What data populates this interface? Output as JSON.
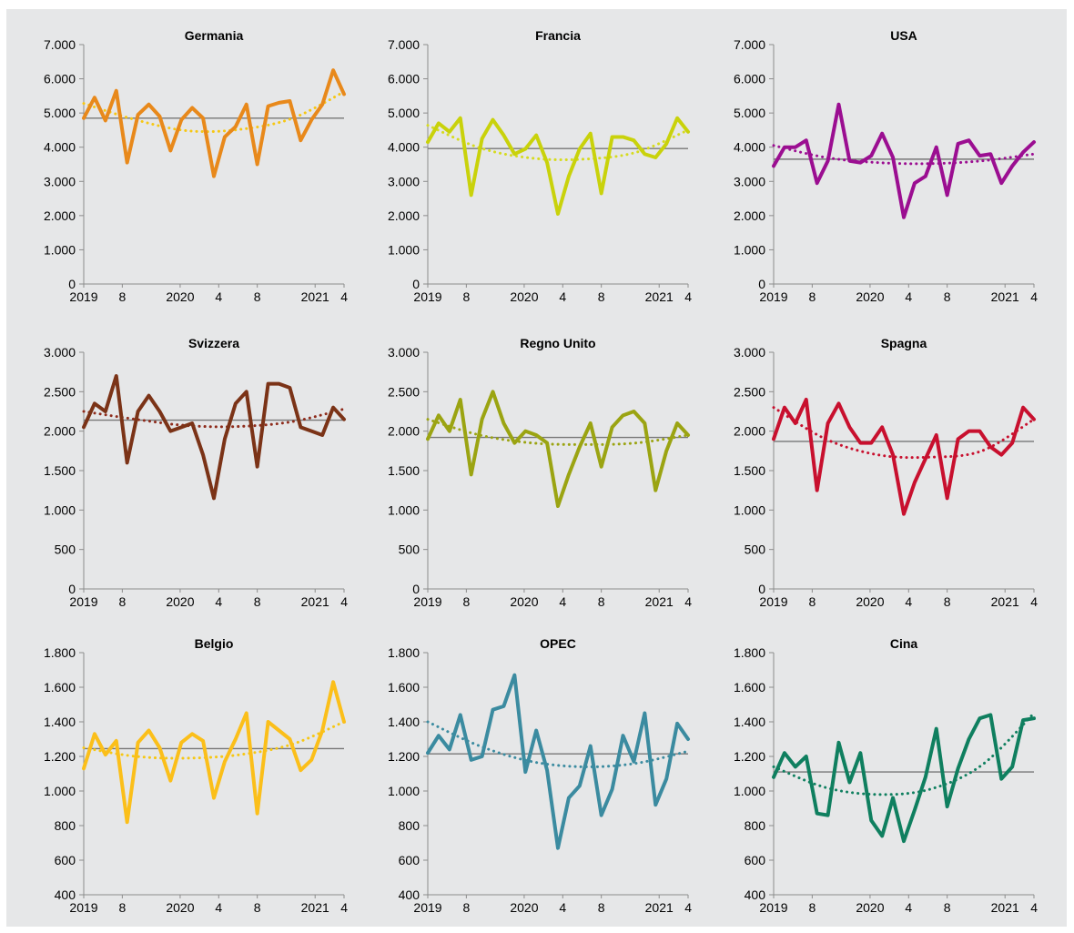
{
  "charts": [
    {
      "type": "line",
      "title": "Germania",
      "ylim": [
        0,
        7000
      ],
      "yticks": [
        0,
        1000,
        2000,
        3000,
        4000,
        5000,
        6000,
        7000
      ],
      "ytick_labels": [
        "0",
        "1.000",
        "2.000",
        "3.000",
        "4.000",
        "5.000",
        "6.000",
        "7.000"
      ],
      "xticks": [
        {
          "index": 0,
          "label": "2019"
        },
        {
          "index": 4,
          "label": "8"
        },
        {
          "index": 10,
          "label": "2020"
        },
        {
          "index": 14,
          "label": "4"
        },
        {
          "index": 18,
          "label": "8"
        },
        {
          "index": 24,
          "label": "2021"
        },
        {
          "index": 27,
          "label": "4"
        }
      ],
      "color": "#e8891b",
      "trend_color": "#f6c713",
      "average": 4850,
      "trend": [
        5280,
        4800,
        4480,
        4520,
        4840,
        5620
      ],
      "values": [
        4850,
        5450,
        4780,
        5650,
        3550,
        4950,
        5250,
        4900,
        3900,
        4800,
        5150,
        4850,
        3150,
        4300,
        4600,
        5250,
        3500,
        5200,
        5300,
        5350,
        4200,
        4800,
        5250,
        6250,
        5550
      ]
    },
    {
      "type": "line",
      "title": "Francia",
      "ylim": [
        0,
        7000
      ],
      "yticks": [
        0,
        1000,
        2000,
        3000,
        4000,
        5000,
        6000,
        7000
      ],
      "ytick_labels": [
        "0",
        "1.000",
        "2.000",
        "3.000",
        "4.000",
        "5.000",
        "6.000",
        "7.000"
      ],
      "xticks": [
        {
          "index": 0,
          "label": "2019"
        },
        {
          "index": 4,
          "label": "8"
        },
        {
          "index": 10,
          "label": "2020"
        },
        {
          "index": 14,
          "label": "4"
        },
        {
          "index": 18,
          "label": "8"
        },
        {
          "index": 24,
          "label": "2021"
        },
        {
          "index": 27,
          "label": "4"
        }
      ],
      "color": "#c9d20b",
      "trend_color": "#d6db1f",
      "average": 3960,
      "trend": [
        4640,
        3980,
        3680,
        3650,
        3850,
        4500
      ],
      "values": [
        4150,
        4700,
        4450,
        4850,
        2600,
        4250,
        4800,
        4350,
        3800,
        3950,
        4350,
        3550,
        2050,
        3150,
        3950,
        4400,
        2650,
        4300,
        4300,
        4200,
        3800,
        3700,
        4100,
        4850,
        4450
      ]
    },
    {
      "type": "line",
      "title": "USA",
      "ylim": [
        0,
        7000
      ],
      "yticks": [
        0,
        1000,
        2000,
        3000,
        4000,
        5000,
        6000,
        7000
      ],
      "ytick_labels": [
        "0",
        "1.000",
        "2.000",
        "3.000",
        "4.000",
        "5.000",
        "6.000",
        "7.000"
      ],
      "xticks": [
        {
          "index": 0,
          "label": "2019"
        },
        {
          "index": 4,
          "label": "8"
        },
        {
          "index": 10,
          "label": "2020"
        },
        {
          "index": 14,
          "label": "4"
        },
        {
          "index": 18,
          "label": "8"
        },
        {
          "index": 24,
          "label": "2021"
        },
        {
          "index": 27,
          "label": "4"
        }
      ],
      "color": "#9b0e91",
      "trend_color": "#9b0e91",
      "average": 3650,
      "trend": [
        4050,
        3700,
        3550,
        3520,
        3600,
        3800
      ],
      "values": [
        3450,
        4000,
        4000,
        4200,
        2950,
        3600,
        5250,
        3600,
        3550,
        3750,
        4400,
        3700,
        1950,
        2950,
        3150,
        4000,
        2600,
        4100,
        4200,
        3750,
        3800,
        2950,
        3450,
        3850,
        4150
      ]
    },
    {
      "type": "line",
      "title": "Svizzera",
      "ylim": [
        0,
        3000
      ],
      "yticks": [
        0,
        500,
        1000,
        1500,
        2000,
        2500,
        3000
      ],
      "ytick_labels": [
        "0",
        "500",
        "1.000",
        "1.500",
        "2.000",
        "2.500",
        "3.000"
      ],
      "xticks": [
        {
          "index": 0,
          "label": "2019"
        },
        {
          "index": 4,
          "label": "8"
        },
        {
          "index": 10,
          "label": "2020"
        },
        {
          "index": 14,
          "label": "4"
        },
        {
          "index": 18,
          "label": "8"
        },
        {
          "index": 24,
          "label": "2021"
        },
        {
          "index": 27,
          "label": "4"
        }
      ],
      "color": "#7b3317",
      "trend_color": "#8e2b1b",
      "average": 2140,
      "trend": [
        2250,
        2150,
        2070,
        2060,
        2120,
        2280
      ],
      "values": [
        2050,
        2350,
        2250,
        2700,
        1600,
        2250,
        2450,
        2250,
        2000,
        2050,
        2100,
        1700,
        1150,
        1900,
        2350,
        2500,
        1550,
        2600,
        2600,
        2550,
        2050,
        2000,
        1950,
        2300,
        2150
      ]
    },
    {
      "type": "line",
      "title": "Regno Unito",
      "ylim": [
        0,
        3000
      ],
      "yticks": [
        0,
        500,
        1000,
        1500,
        2000,
        2500,
        3000
      ],
      "ytick_labels": [
        "0",
        "500",
        "1.000",
        "1.500",
        "2.000",
        "2.500",
        "3.000"
      ],
      "xticks": [
        {
          "index": 0,
          "label": "2019"
        },
        {
          "index": 4,
          "label": "8"
        },
        {
          "index": 10,
          "label": "2020"
        },
        {
          "index": 14,
          "label": "4"
        },
        {
          "index": 18,
          "label": "8"
        },
        {
          "index": 24,
          "label": "2021"
        },
        {
          "index": 27,
          "label": "4"
        }
      ],
      "color": "#9ba412",
      "trend_color": "#9ba412",
      "average": 1920,
      "trend": [
        2150,
        1950,
        1850,
        1830,
        1850,
        1950
      ],
      "values": [
        1900,
        2200,
        2000,
        2400,
        1450,
        2150,
        2500,
        2100,
        1850,
        2000,
        1950,
        1850,
        1050,
        1450,
        1800,
        2100,
        1550,
        2050,
        2200,
        2250,
        2100,
        1250,
        1750,
        2100,
        1950
      ]
    },
    {
      "type": "line",
      "title": "Spagna",
      "ylim": [
        0,
        3000
      ],
      "yticks": [
        0,
        500,
        1000,
        1500,
        2000,
        2500,
        3000
      ],
      "ytick_labels": [
        "0",
        "500",
        "1.000",
        "1.500",
        "2.000",
        "2.500",
        "3.000"
      ],
      "xticks": [
        {
          "index": 0,
          "label": "2019"
        },
        {
          "index": 4,
          "label": "8"
        },
        {
          "index": 10,
          "label": "2020"
        },
        {
          "index": 14,
          "label": "4"
        },
        {
          "index": 18,
          "label": "8"
        },
        {
          "index": 24,
          "label": "2021"
        },
        {
          "index": 27,
          "label": "4"
        }
      ],
      "color": "#c8102e",
      "trend_color": "#c8102e",
      "average": 1870,
      "trend": [
        2300,
        1900,
        1700,
        1670,
        1750,
        2150
      ],
      "values": [
        1900,
        2300,
        2100,
        2400,
        1250,
        2100,
        2350,
        2050,
        1850,
        1850,
        2050,
        1700,
        950,
        1350,
        1650,
        1950,
        1150,
        1900,
        2000,
        2000,
        1800,
        1700,
        1850,
        2300,
        2150
      ]
    },
    {
      "type": "line",
      "title": "Belgio",
      "ylim": [
        400,
        1800
      ],
      "yticks": [
        400,
        600,
        800,
        1000,
        1200,
        1400,
        1600,
        1800
      ],
      "ytick_labels": [
        "400",
        "600",
        "800",
        "1.000",
        "1.200",
        "1.400",
        "1.600",
        "1.800"
      ],
      "xticks": [
        {
          "index": 0,
          "label": "2019"
        },
        {
          "index": 4,
          "label": "8"
        },
        {
          "index": 10,
          "label": "2020"
        },
        {
          "index": 14,
          "label": "4"
        },
        {
          "index": 18,
          "label": "8"
        },
        {
          "index": 24,
          "label": "2021"
        },
        {
          "index": 27,
          "label": "4"
        }
      ],
      "color": "#fbbf1a",
      "trend_color": "#f6c713",
      "average": 1245,
      "trend": [
        1250,
        1200,
        1190,
        1210,
        1270,
        1400
      ],
      "values": [
        1130,
        1330,
        1210,
        1290,
        820,
        1280,
        1350,
        1250,
        1060,
        1280,
        1330,
        1290,
        960,
        1170,
        1300,
        1450,
        870,
        1400,
        1350,
        1300,
        1120,
        1180,
        1350,
        1630,
        1400
      ]
    },
    {
      "type": "line",
      "title": "OPEC",
      "ylim": [
        400,
        1800
      ],
      "yticks": [
        400,
        600,
        800,
        1000,
        1200,
        1400,
        1600,
        1800
      ],
      "ytick_labels": [
        "400",
        "600",
        "800",
        "1.000",
        "1.200",
        "1.400",
        "1.600",
        "1.800"
      ],
      "xticks": [
        {
          "index": 0,
          "label": "2019"
        },
        {
          "index": 4,
          "label": "8"
        },
        {
          "index": 10,
          "label": "2020"
        },
        {
          "index": 14,
          "label": "4"
        },
        {
          "index": 18,
          "label": "8"
        },
        {
          "index": 24,
          "label": "2021"
        },
        {
          "index": 27,
          "label": "4"
        }
      ],
      "color": "#3b8ba0",
      "trend_color": "#3b8ba0",
      "average": 1215,
      "trend": [
        1400,
        1260,
        1170,
        1140,
        1160,
        1230
      ],
      "values": [
        1220,
        1320,
        1240,
        1440,
        1180,
        1200,
        1470,
        1490,
        1670,
        1110,
        1350,
        1120,
        670,
        960,
        1030,
        1260,
        860,
        1010,
        1320,
        1170,
        1450,
        920,
        1070,
        1390,
        1300
      ]
    },
    {
      "type": "line",
      "title": "Cina",
      "ylim": [
        400,
        1800
      ],
      "yticks": [
        400,
        600,
        800,
        1000,
        1200,
        1400,
        1600,
        1800
      ],
      "ytick_labels": [
        "400",
        "600",
        "800",
        "1.000",
        "1.200",
        "1.400",
        "1.600",
        "1.800"
      ],
      "xticks": [
        {
          "index": 0,
          "label": "2019"
        },
        {
          "index": 4,
          "label": "8"
        },
        {
          "index": 10,
          "label": "2020"
        },
        {
          "index": 14,
          "label": "4"
        },
        {
          "index": 18,
          "label": "8"
        },
        {
          "index": 24,
          "label": "2021"
        },
        {
          "index": 27,
          "label": "4"
        }
      ],
      "color": "#0f7f5f",
      "trend_color": "#0f7f5f",
      "average": 1110,
      "trend": [
        1140,
        1020,
        980,
        1010,
        1150,
        1450
      ],
      "values": [
        1080,
        1220,
        1140,
        1200,
        870,
        860,
        1280,
        1050,
        1220,
        830,
        740,
        960,
        710,
        890,
        1080,
        1360,
        910,
        1130,
        1300,
        1420,
        1440,
        1070,
        1140,
        1410,
        1420
      ]
    }
  ]
}
